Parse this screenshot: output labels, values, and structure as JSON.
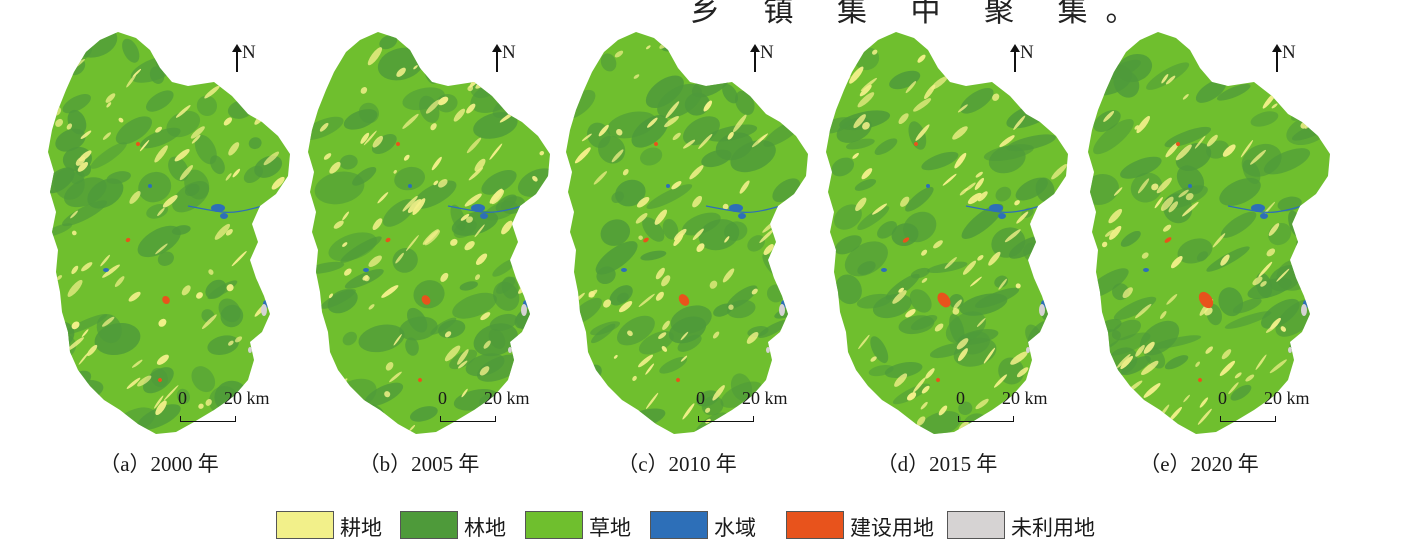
{
  "header_fragment": "乡 镇 集 中 聚 集。",
  "north_label": "N",
  "scale": {
    "zero": "0",
    "twenty": "20 km"
  },
  "panels": [
    {
      "caption": "（a）2000 年",
      "year": 2000,
      "build_level": 0.2
    },
    {
      "caption": "（b）2005 年",
      "year": 2005,
      "build_level": 0.35
    },
    {
      "caption": "（c）2010 年",
      "year": 2010,
      "build_level": 0.55
    },
    {
      "caption": "（d）2015 年",
      "year": 2015,
      "build_level": 0.85
    },
    {
      "caption": "（e）2020 年",
      "year": 2020,
      "build_level": 1.0
    }
  ],
  "legend": [
    {
      "label": "耕地",
      "color": "#f2f08a"
    },
    {
      "label": "林地",
      "color": "#4e9a3a"
    },
    {
      "label": "草地",
      "color": "#6fbf2e"
    },
    {
      "label": "水域",
      "color": "#2d6fb8"
    },
    {
      "label": "建设用地",
      "color": "#e8531c"
    },
    {
      "label": "未利用地",
      "color": "#d6d3d3"
    }
  ]
}
